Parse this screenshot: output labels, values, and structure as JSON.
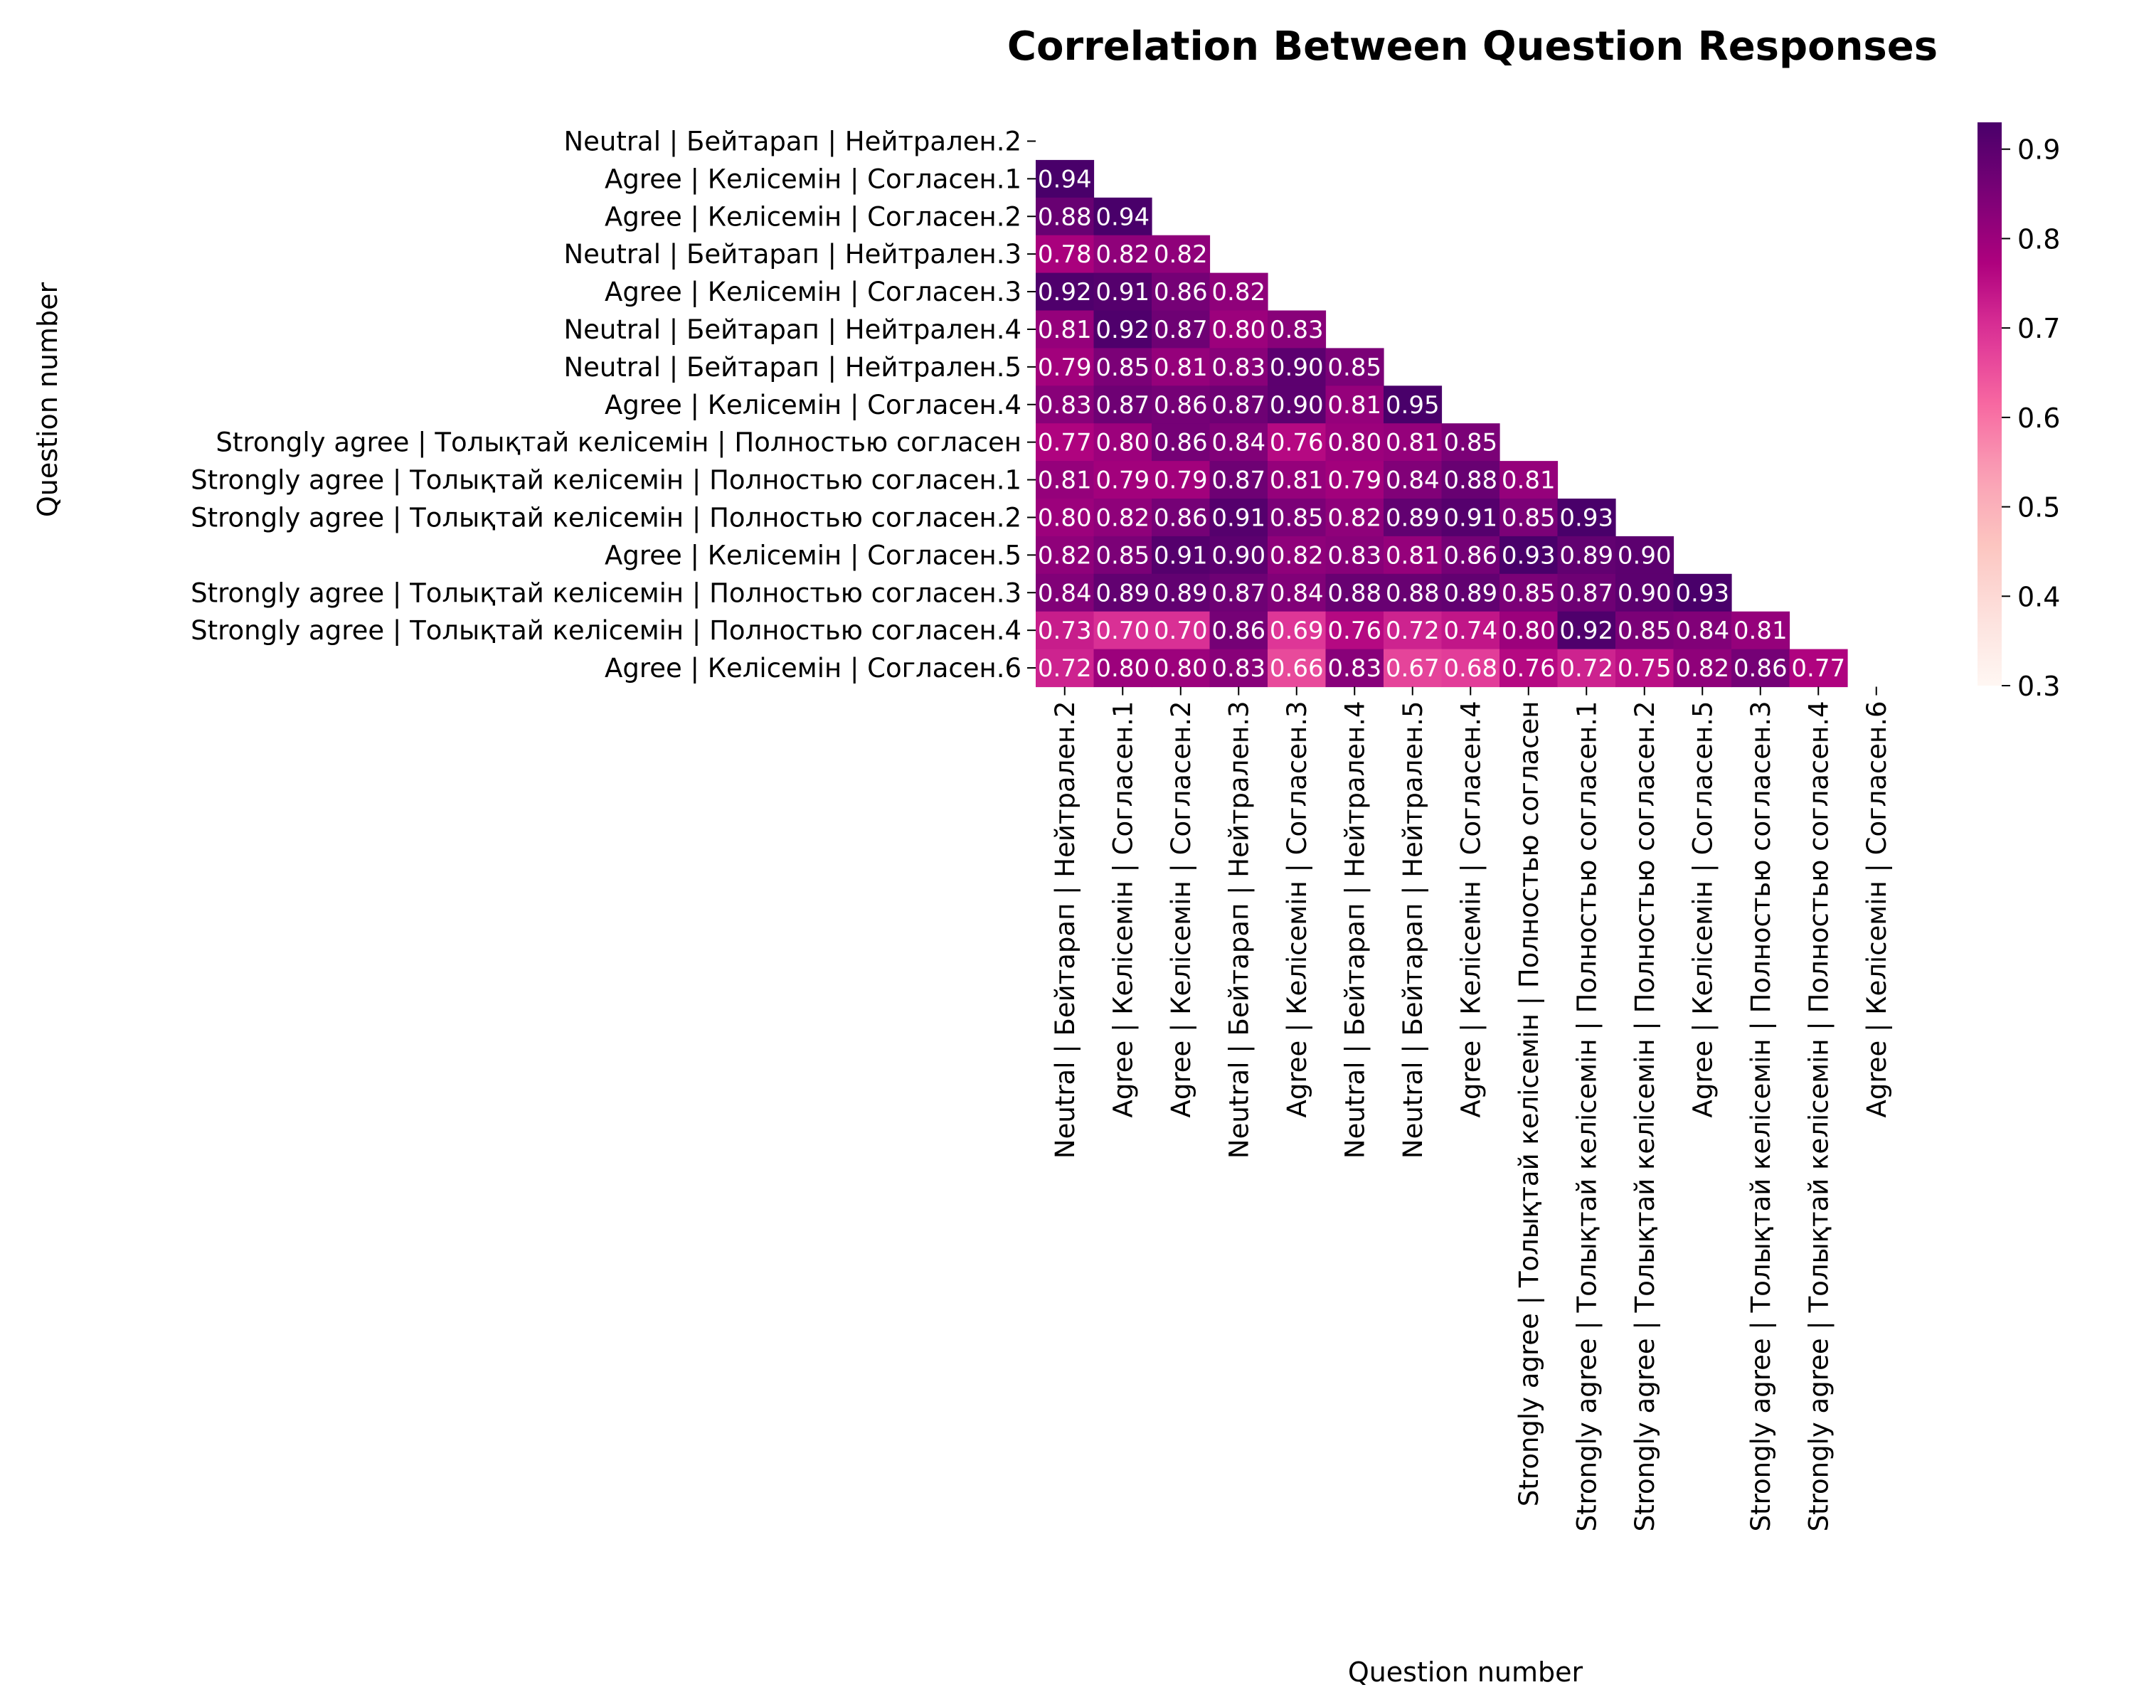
{
  "chart_data": {
    "type": "heatmap",
    "title": "Correlation Between Question Responses",
    "xlabel": "Question number",
    "ylabel": "Question number",
    "colormap": "RdPu",
    "vmin": 0.3,
    "vmax": 0.93,
    "colorbar_ticks": [
      "0.3",
      "0.4",
      "0.5",
      "0.6",
      "0.7",
      "0.8",
      "0.9"
    ],
    "colorbar_values": [
      0.3,
      0.4,
      0.5,
      0.6,
      0.7,
      0.8,
      0.9
    ],
    "annotation_color_light": "#ffffff",
    "labels": [
      "Neutral | Бейтарап | Нейтрален.2",
      "Agree | Келісемін | Согласен.1",
      "Agree | Келісемін | Согласен.2",
      "Neutral | Бейтарап | Нейтрален.3",
      "Agree | Келісемін | Согласен.3",
      "Neutral | Бейтарап | Нейтрален.4",
      "Neutral | Бейтарап | Нейтрален.5",
      "Agree | Келісемін | Согласен.4",
      "Strongly agree | Толықтай келісемін | Полностью согласен",
      "Strongly agree | Толықтай келісемін | Полностью согласен.1",
      "Strongly agree | Толықтай келісемін | Полностью согласен.2",
      "Agree | Келісемін | Согласен.5",
      "Strongly agree | Толықтай келісемін | Полностью согласен.3",
      "Strongly agree | Толықтай келісемін | Полностью согласен.4",
      "Agree | Келісемін | Согласен.6"
    ],
    "lower_triangle": [
      [],
      [
        0.94
      ],
      [
        0.88,
        0.94
      ],
      [
        0.78,
        0.82,
        0.82
      ],
      [
        0.92,
        0.91,
        0.86,
        0.82
      ],
      [
        0.81,
        0.92,
        0.87,
        0.8,
        0.83
      ],
      [
        0.79,
        0.85,
        0.81,
        0.83,
        0.9,
        0.85
      ],
      [
        0.83,
        0.87,
        0.86,
        0.87,
        0.9,
        0.81,
        0.95
      ],
      [
        0.77,
        0.8,
        0.86,
        0.84,
        0.76,
        0.8,
        0.81,
        0.85
      ],
      [
        0.81,
        0.79,
        0.79,
        0.87,
        0.81,
        0.79,
        0.84,
        0.88,
        0.81
      ],
      [
        0.8,
        0.82,
        0.86,
        0.91,
        0.85,
        0.82,
        0.89,
        0.91,
        0.85,
        0.93
      ],
      [
        0.82,
        0.85,
        0.91,
        0.9,
        0.82,
        0.83,
        0.81,
        0.86,
        0.93,
        0.89,
        0.9
      ],
      [
        0.84,
        0.89,
        0.89,
        0.87,
        0.84,
        0.88,
        0.88,
        0.89,
        0.85,
        0.87,
        0.9,
        0.93
      ],
      [
        0.73,
        0.7,
        0.7,
        0.86,
        0.69,
        0.76,
        0.72,
        0.74,
        0.8,
        0.92,
        0.85,
        0.84,
        0.81
      ],
      [
        0.72,
        0.8,
        0.8,
        0.83,
        0.66,
        0.83,
        0.67,
        0.68,
        0.76,
        0.72,
        0.75,
        0.82,
        0.86,
        0.77
      ]
    ]
  }
}
